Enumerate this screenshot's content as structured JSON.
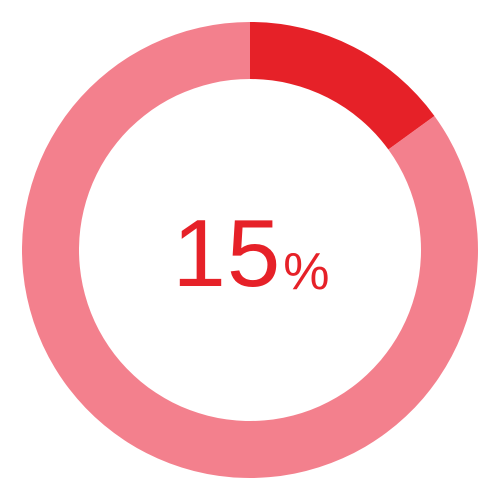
{
  "chart_data": {
    "type": "pie",
    "variant": "donut",
    "value_percent": 15,
    "slices": [
      {
        "value": 15,
        "color": "#e62128"
      },
      {
        "value": 85,
        "color": "#f3808d"
      }
    ],
    "center_label": {
      "number": "15",
      "unit": "%"
    },
    "label_color": "#e62128"
  }
}
